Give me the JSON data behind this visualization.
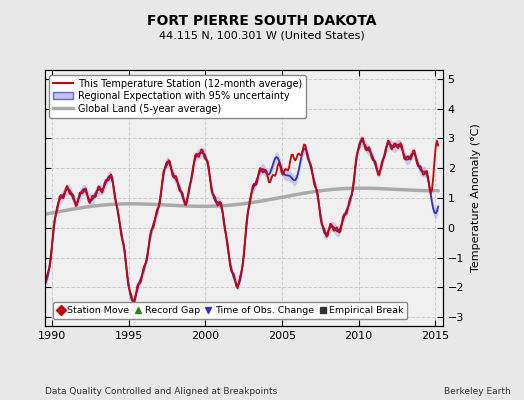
{
  "title": "FORT PIERRE SOUTH DAKOTA",
  "subtitle": "44.115 N, 100.301 W (United States)",
  "ylabel": "Temperature Anomaly (°C)",
  "footer_left": "Data Quality Controlled and Aligned at Breakpoints",
  "footer_right": "Berkeley Earth",
  "xlim": [
    1989.5,
    2015.5
  ],
  "ylim": [
    -3.3,
    5.3
  ],
  "yticks": [
    -3,
    -2,
    -1,
    0,
    1,
    2,
    3,
    4,
    5
  ],
  "xticks": [
    1990,
    1995,
    2000,
    2005,
    2010,
    2015
  ],
  "bg_color": "#e8e8e8",
  "plot_bg_color": "#f0f0f0",
  "legend_entries": [
    {
      "label": "This Temperature Station (12-month average)",
      "color": "#cc0000",
      "lw": 1.5
    },
    {
      "label": "Regional Expectation with 95% uncertainty",
      "color": "#3333bb",
      "lw": 1.5
    },
    {
      "label": "Global Land (5-year average)",
      "color": "#aaaaaa",
      "lw": 2.0
    }
  ],
  "marker_legend": [
    {
      "label": "Station Move",
      "marker": "D",
      "color": "#cc0000"
    },
    {
      "label": "Record Gap",
      "marker": "^",
      "color": "#228822"
    },
    {
      "label": "Time of Obs. Change",
      "marker": "v",
      "color": "#3333bb"
    },
    {
      "label": "Empirical Break",
      "marker": "s",
      "color": "#333333"
    }
  ]
}
